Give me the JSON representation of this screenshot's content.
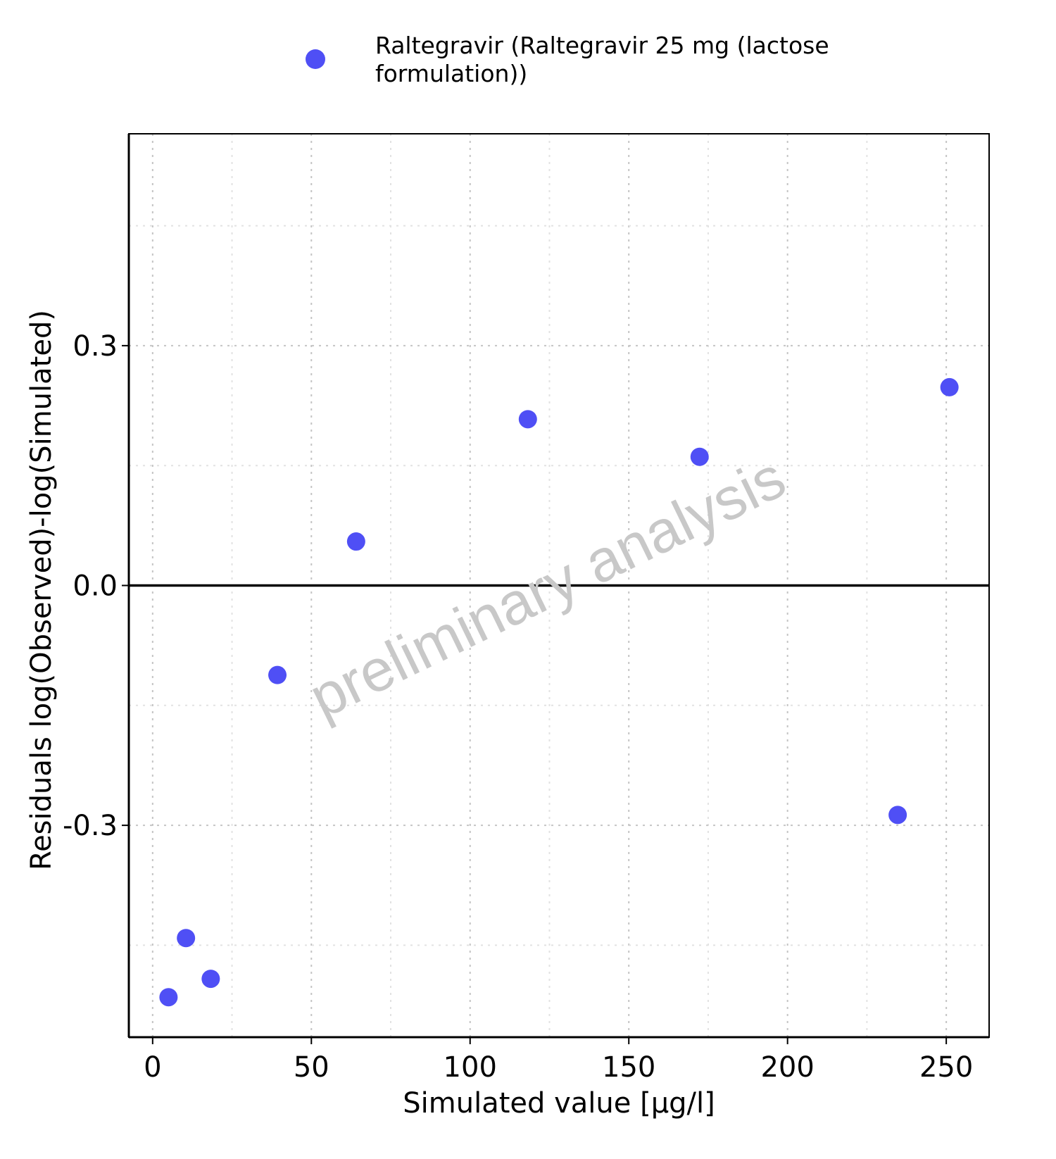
{
  "chart_data": {
    "type": "scatter",
    "title": "",
    "xlabel": "Simulated value [µg/l]",
    "ylabel": "Residuals log(Observed)-log(Simulated)",
    "xlim": [
      -7.5,
      263.5
    ],
    "ylim": [
      -0.565,
      0.565
    ],
    "x_ticks": [
      0,
      50,
      100,
      150,
      200,
      250
    ],
    "x_tick_labels": [
      "0",
      "50",
      "100",
      "150",
      "200",
      "250"
    ],
    "y_ticks": [
      -0.3,
      0.0,
      0.3
    ],
    "y_tick_labels": [
      "-0.3",
      "0.0",
      "0.3"
    ],
    "grid": true,
    "reference_line_y": 0,
    "legend_position": "top",
    "legend_lines": [
      "Raltegravir (Raltegravir 25 mg (lactose",
      "formulation))"
    ],
    "watermark": "preliminary analysis",
    "series": [
      {
        "name": "Raltegravir (Raltegravir 25 mg (lactose formulation))",
        "color": "#4f4ff5",
        "points": [
          {
            "x": 5,
            "y": -0.515
          },
          {
            "x": 10.5,
            "y": -0.441
          },
          {
            "x": 18.3,
            "y": -0.492
          },
          {
            "x": 39.3,
            "y": -0.112
          },
          {
            "x": 64.1,
            "y": 0.055
          },
          {
            "x": 118.2,
            "y": 0.208
          },
          {
            "x": 172.3,
            "y": 0.161
          },
          {
            "x": 234.7,
            "y": -0.287
          },
          {
            "x": 251,
            "y": 0.248
          }
        ]
      }
    ]
  }
}
